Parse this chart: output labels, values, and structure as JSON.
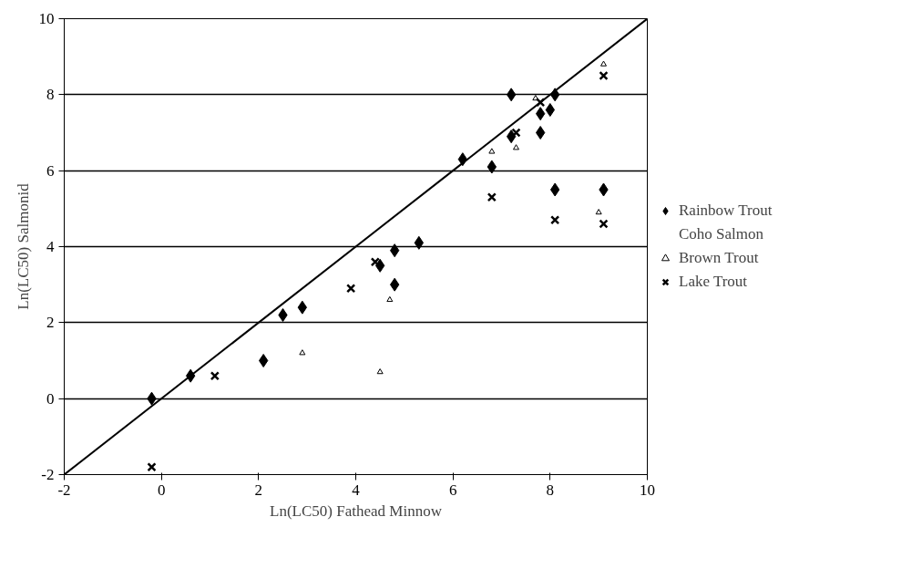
{
  "chart_data": {
    "type": "scatter",
    "xlabel": "Ln(LC50) Fathead Minnow",
    "ylabel": "Ln(LC50) Salmonid",
    "xlim": [
      -2,
      10
    ],
    "ylim": [
      -2,
      10
    ],
    "xticks": [
      -2,
      0,
      2,
      4,
      6,
      8,
      10
    ],
    "yticks": [
      -2,
      0,
      2,
      4,
      6,
      8,
      10
    ],
    "grid": "y",
    "legend": "right",
    "series": [
      {
        "name": "Rainbow Trout",
        "color": "#000000",
        "marker": "diamond",
        "x": [
          -0.2,
          0.6,
          2.1,
          2.5,
          2.9,
          4.5,
          4.8,
          4.8,
          5.3,
          6.2,
          6.8,
          7.2,
          7.2,
          7.8,
          7.8,
          8.0,
          8.1,
          8.1,
          9.1
        ],
        "values": [
          0.0,
          0.6,
          1.0,
          2.2,
          2.4,
          3.5,
          3.9,
          3.0,
          4.1,
          6.3,
          6.1,
          8.0,
          6.9,
          7.5,
          7.0,
          7.6,
          8.0,
          5.5,
          5.5
        ]
      },
      {
        "name": "Coho Salmon",
        "marker": "none"
      },
      {
        "name": "Brown Trout",
        "color": "#000000",
        "marker": "triangle",
        "x": [
          2.9,
          4.5,
          4.7,
          6.8,
          7.3,
          7.7,
          9.0,
          9.1
        ],
        "values": [
          1.2,
          0.7,
          2.6,
          6.5,
          6.6,
          7.9,
          4.9,
          8.8
        ]
      },
      {
        "name": "Lake Trout",
        "color": "#000000",
        "marker": "cross",
        "x": [
          -0.2,
          1.1,
          3.9,
          4.4,
          6.8,
          7.3,
          7.8,
          8.1,
          9.1,
          9.1
        ],
        "values": [
          -1.8,
          0.6,
          2.9,
          3.6,
          5.3,
          7.0,
          7.8,
          4.7,
          4.6,
          8.5
        ]
      },
      {
        "type": "line",
        "color": "#000000",
        "line_style": "solid",
        "x": [
          -2,
          10
        ],
        "values": [
          -2,
          10
        ]
      }
    ]
  }
}
